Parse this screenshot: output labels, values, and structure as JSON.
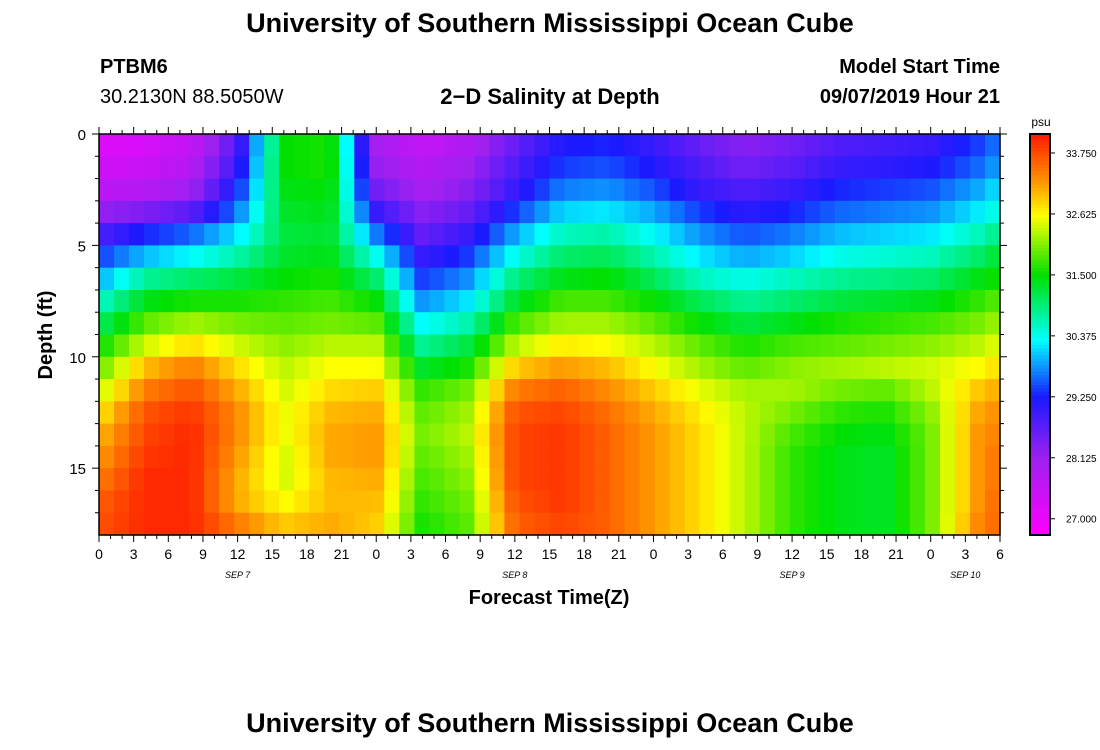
{
  "page": {
    "title_top": "University of Southern Mississippi Ocean Cube",
    "title_bottom": "University of Southern Mississippi Ocean Cube",
    "station_id": "PTBM6",
    "station_coords": "30.2130N 88.5050W",
    "plot_title": "2−D Salinity at Depth",
    "model_start_label": "Model Start Time",
    "model_start_value": "09/07/2019 Hour 21"
  },
  "colors": {
    "magenta": "#ff00ff",
    "purple": "#a020f0",
    "blue": "#1a1aff",
    "cyan": "#00ffff",
    "green": "#00e000",
    "yellow": "#ffff00",
    "orange": "#ff9900",
    "red": "#ff1a00"
  },
  "chart_data": {
    "type": "heatmap",
    "title": "2−D Salinity at Depth",
    "xlabel": "Forecast Time(Z)",
    "ylabel": "Depth (ft)",
    "x_range_hours": [
      0,
      78
    ],
    "y_range_ft": [
      0,
      18
    ],
    "y_reversed": true,
    "y_ticks": [
      0,
      5,
      10,
      15
    ],
    "y_tick_labels": [
      "0",
      "5",
      "10",
      "15"
    ],
    "x_ticks_hours": [
      0,
      3,
      6,
      9,
      12,
      15,
      18,
      21,
      24,
      27,
      30,
      33,
      36,
      39,
      42,
      45,
      48,
      51,
      54,
      57,
      60,
      63,
      66,
      69,
      72,
      75,
      78
    ],
    "x_tick_labels": [
      "0",
      "3",
      "6",
      "9",
      "12",
      "15",
      "18",
      "21",
      "0",
      "3",
      "6",
      "9",
      "12",
      "15",
      "18",
      "21",
      "0",
      "3",
      "6",
      "9",
      "12",
      "15",
      "18",
      "21",
      "0",
      "3",
      "6"
    ],
    "date_labels": [
      {
        "label": "SEP 7",
        "hour": 12
      },
      {
        "label": "SEP 8",
        "hour": 36
      },
      {
        "label": "SEP 9",
        "hour": 60
      },
      {
        "label": "SEP 10",
        "hour": 75
      }
    ],
    "colorbar": {
      "unit": "psu",
      "min": 26.7,
      "max": 34.1,
      "tick_values": [
        27.0,
        28.125,
        29.25,
        30.375,
        31.5,
        32.625,
        33.75
      ],
      "tick_labels": [
        "27.000",
        "28.125",
        "29.250",
        "30.375",
        "31.500",
        "32.625",
        "33.750"
      ]
    },
    "depth_levels_ft": [
      0.5,
      1.5,
      2.5,
      3.5,
      4.5,
      5.5,
      6.5,
      7.5,
      8.5,
      9.5,
      10.5,
      11.5,
      12.5,
      13.5,
      14.5,
      15.5,
      16.5,
      17.5
    ],
    "time_hours": [
      0,
      4,
      8,
      12,
      16,
      20,
      24,
      28,
      32,
      36,
      40,
      44,
      48,
      52,
      56,
      60,
      64,
      68,
      72,
      76,
      78
    ],
    "salinity": [
      [
        27.2,
        27.3,
        27.6,
        28.8,
        31.5,
        31.6,
        28.0,
        27.6,
        27.9,
        28.6,
        29.2,
        29.3,
        29.0,
        28.6,
        28.3,
        28.5,
        28.8,
        28.9,
        29.0,
        29.4,
        29.7
      ],
      [
        27.4,
        27.5,
        27.8,
        29.0,
        31.5,
        31.6,
        28.2,
        27.8,
        28.1,
        28.8,
        29.4,
        29.5,
        29.2,
        28.8,
        28.5,
        28.7,
        29.0,
        29.1,
        29.2,
        29.6,
        29.9
      ],
      [
        27.7,
        27.8,
        28.1,
        29.3,
        31.4,
        31.5,
        28.5,
        28.0,
        28.3,
        29.0,
        29.7,
        29.8,
        29.5,
        29.0,
        28.8,
        29.0,
        29.3,
        29.4,
        29.5,
        29.9,
        30.2
      ],
      [
        28.2,
        28.4,
        28.7,
        29.7,
        31.3,
        31.4,
        29.0,
        28.3,
        28.6,
        29.4,
        30.1,
        30.2,
        29.9,
        29.4,
        29.1,
        29.3,
        29.6,
        29.7,
        29.8,
        30.2,
        30.5
      ],
      [
        28.8,
        29.3,
        29.6,
        30.2,
        31.2,
        31.3,
        29.7,
        28.6,
        29.0,
        29.9,
        30.6,
        30.7,
        30.3,
        29.8,
        29.5,
        29.7,
        30.0,
        30.1,
        30.2,
        30.6,
        30.9
      ],
      [
        29.4,
        30.0,
        30.3,
        30.7,
        31.3,
        31.4,
        30.4,
        29.0,
        29.4,
        30.4,
        31.0,
        31.1,
        30.7,
        30.2,
        29.9,
        30.1,
        30.4,
        30.5,
        30.6,
        31.0,
        31.3
      ],
      [
        29.9,
        30.8,
        31.0,
        31.2,
        31.5,
        31.6,
        31.0,
        29.4,
        29.8,
        30.9,
        31.4,
        31.5,
        31.1,
        30.6,
        30.4,
        30.6,
        30.8,
        30.9,
        31.0,
        31.4,
        31.6
      ],
      [
        30.5,
        31.4,
        31.6,
        31.6,
        31.7,
        31.8,
        31.5,
        29.8,
        30.2,
        31.3,
        31.8,
        31.8,
        31.5,
        31.1,
        30.8,
        31.0,
        31.2,
        31.3,
        31.4,
        31.7,
        31.9
      ],
      [
        31.0,
        31.9,
        32.2,
        32.0,
        31.9,
        32.0,
        31.9,
        30.3,
        30.7,
        31.8,
        32.2,
        32.2,
        31.9,
        31.5,
        31.2,
        31.4,
        31.6,
        31.7,
        31.8,
        32.0,
        32.2
      ],
      [
        31.5,
        32.4,
        32.8,
        32.4,
        32.1,
        32.3,
        32.3,
        30.8,
        31.2,
        32.3,
        32.7,
        32.6,
        32.3,
        31.9,
        31.6,
        31.8,
        31.9,
        32.0,
        32.1,
        32.3,
        32.5
      ],
      [
        31.9,
        33.0,
        33.4,
        32.8,
        32.3,
        32.6,
        32.6,
        31.3,
        31.6,
        32.9,
        33.2,
        33.0,
        32.6,
        32.2,
        31.9,
        32.1,
        32.2,
        32.3,
        32.4,
        32.6,
        32.8
      ],
      [
        32.3,
        33.4,
        33.7,
        33.1,
        32.4,
        32.8,
        32.9,
        31.7,
        32.0,
        33.4,
        33.6,
        33.3,
        32.9,
        32.5,
        32.2,
        32.2,
        32.0,
        31.9,
        32.3,
        32.9,
        33.1
      ],
      [
        32.7,
        33.7,
        33.9,
        33.3,
        32.5,
        33.0,
        33.1,
        31.9,
        32.2,
        33.7,
        33.8,
        33.5,
        33.1,
        32.7,
        32.3,
        32.0,
        31.7,
        31.6,
        32.1,
        33.1,
        33.3
      ],
      [
        33.0,
        33.8,
        34.0,
        33.3,
        32.5,
        33.1,
        33.2,
        32.0,
        32.3,
        33.8,
        33.9,
        33.6,
        33.2,
        32.8,
        32.3,
        31.8,
        31.5,
        31.4,
        32.0,
        33.2,
        33.4
      ],
      [
        33.2,
        33.9,
        34.0,
        33.2,
        32.4,
        33.1,
        33.2,
        31.9,
        32.2,
        33.8,
        33.9,
        33.6,
        33.2,
        32.8,
        32.3,
        31.7,
        31.4,
        31.3,
        32.0,
        33.2,
        33.5
      ],
      [
        33.4,
        34.0,
        34.0,
        33.1,
        32.4,
        33.0,
        33.1,
        31.8,
        32.1,
        33.8,
        33.9,
        33.6,
        33.2,
        32.8,
        32.3,
        31.7,
        31.4,
        31.3,
        32.0,
        33.2,
        33.5
      ],
      [
        33.6,
        34.0,
        34.0,
        33.1,
        32.6,
        33.0,
        33.0,
        31.7,
        32.0,
        33.7,
        33.9,
        33.6,
        33.2,
        32.8,
        32.3,
        31.7,
        31.4,
        31.3,
        32.0,
        33.2,
        33.6
      ],
      [
        33.7,
        34.0,
        34.0,
        33.4,
        32.9,
        33.1,
        32.9,
        31.6,
        31.9,
        33.6,
        33.8,
        33.6,
        33.2,
        32.8,
        32.3,
        31.7,
        31.4,
        31.3,
        32.0,
        33.3,
        33.6
      ]
    ]
  }
}
